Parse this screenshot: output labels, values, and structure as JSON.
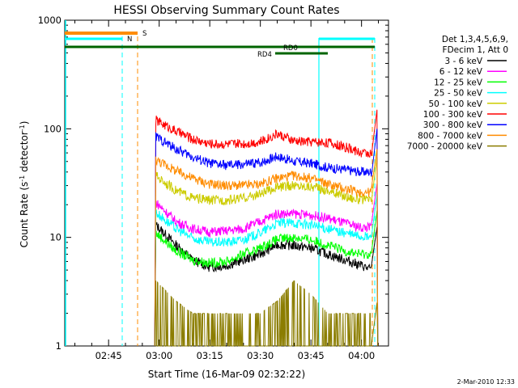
{
  "chart_data": {
    "type": "line",
    "title": "HESSI Observing Summary Count Rates",
    "xlabel": "Start Time (16-Mar-09 02:32:22)",
    "ylabel_main": "Count Rate (s",
    "ylabel_sup1": "-1",
    "ylabel_mid": " detector",
    "ylabel_sup2": "-1",
    "ylabel_end": ")",
    "y_scale": "log",
    "ylim": [
      1,
      1000
    ],
    "xlim": [
      "02:32",
      "04:08"
    ],
    "x_ticks": [
      "02:45",
      "03:00",
      "03:15",
      "03:30",
      "03:45",
      "04:00"
    ],
    "y_ticks": [
      "1",
      "10",
      "100",
      "1000"
    ],
    "footer_date": "2-Mar-2010 12:33",
    "legend": {
      "header1": "Det 1,3,4,5,6,9,",
      "header2": "FDecim 1, Att 0",
      "placement": "right"
    },
    "series": [
      {
        "name": "3 - 6 keV",
        "color": "#000000",
        "x": [
          "02:59",
          "03:05",
          "03:10",
          "03:15",
          "03:20",
          "03:25",
          "03:30",
          "03:35",
          "03:40",
          "03:45",
          "03:50",
          "03:55",
          "04:00",
          "04:03"
        ],
        "values": [
          13,
          8.5,
          6.2,
          5.3,
          5.5,
          6.2,
          7.0,
          8.6,
          8.4,
          8.0,
          7.0,
          6.2,
          5.5,
          5
        ]
      },
      {
        "name": "6 - 12 keV",
        "color": "#ff00ff",
        "x": [
          "02:59",
          "03:05",
          "03:10",
          "03:15",
          "03:20",
          "03:25",
          "03:30",
          "03:35",
          "03:40",
          "03:45",
          "03:50",
          "03:55",
          "04:00",
          "04:03"
        ],
        "values": [
          21,
          14,
          12,
          11.2,
          11.5,
          12,
          14,
          16.5,
          16.5,
          16,
          15,
          13.5,
          12.3,
          12.5
        ]
      },
      {
        "name": "12 - 25 keV",
        "color": "#00ff00",
        "x": [
          "02:59",
          "03:05",
          "03:10",
          "03:15",
          "03:20",
          "03:25",
          "03:30",
          "03:35",
          "03:40",
          "03:45",
          "03:50",
          "03:55",
          "04:00",
          "04:03"
        ],
        "values": [
          11,
          7.5,
          6.2,
          5.8,
          6.0,
          7.0,
          8.0,
          9.6,
          10,
          9.5,
          8.5,
          7.5,
          7,
          7
        ]
      },
      {
        "name": "25 - 50 keV",
        "color": "#00ffff",
        "x": [
          "02:59",
          "03:05",
          "03:10",
          "03:15",
          "03:20",
          "03:25",
          "03:30",
          "03:35",
          "03:40",
          "03:45",
          "03:50",
          "03:55",
          "04:00",
          "04:03"
        ],
        "values": [
          17,
          12,
          9.8,
          9.0,
          9.0,
          9.5,
          11,
          13.5,
          13.6,
          13,
          12,
          11,
          10.2,
          10
        ]
      },
      {
        "name": "50 - 100 keV",
        "color": "#cccc00",
        "x": [
          "02:59",
          "03:05",
          "03:10",
          "03:15",
          "03:20",
          "03:25",
          "03:30",
          "03:35",
          "03:40",
          "03:45",
          "03:50",
          "03:55",
          "04:00",
          "04:03"
        ],
        "values": [
          37,
          27,
          23,
          22,
          22,
          23,
          25,
          29,
          30,
          29.5,
          27,
          24,
          22,
          22
        ]
      },
      {
        "name": "100 - 300 keV",
        "color": "#ff0000",
        "x": [
          "02:59",
          "03:05",
          "03:10",
          "03:15",
          "03:20",
          "03:25",
          "03:30",
          "03:35",
          "03:40",
          "03:45",
          "03:50",
          "03:55",
          "04:00",
          "04:03"
        ],
        "values": [
          120,
          95,
          80,
          73,
          72,
          73,
          76,
          90,
          77,
          76,
          75,
          68,
          60,
          60
        ]
      },
      {
        "name": "300 - 800 keV",
        "color": "#0000ff",
        "x": [
          "02:59",
          "03:05",
          "03:10",
          "03:15",
          "03:20",
          "03:25",
          "03:30",
          "03:35",
          "03:40",
          "03:45",
          "03:50",
          "03:55",
          "04:00",
          "04:03"
        ],
        "values": [
          85,
          65,
          55,
          48,
          46,
          47,
          49,
          56,
          50,
          48,
          44,
          42,
          40,
          40
        ]
      },
      {
        "name": "800 - 7000 keV",
        "color": "#ff8c00",
        "x": [
          "02:59",
          "03:05",
          "03:10",
          "03:15",
          "03:20",
          "03:25",
          "03:30",
          "03:35",
          "03:40",
          "03:45",
          "03:50",
          "03:55",
          "04:00",
          "04:03"
        ],
        "values": [
          52,
          41,
          35,
          31,
          30,
          30,
          31,
          35,
          37,
          35,
          31,
          28,
          26,
          26
        ]
      },
      {
        "name": "7000 - 20000 keV",
        "color": "#8b7d00",
        "x": [
          "02:59",
          "03:05",
          "03:10",
          "03:15",
          "03:20",
          "03:25",
          "03:30",
          "03:35",
          "03:40",
          "03:45",
          "03:50",
          "03:55",
          "04:00",
          "04:03"
        ],
        "values": [
          2,
          1.3,
          1.0,
          1.0,
          1.0,
          1.0,
          1.0,
          1.3,
          2,
          1.5,
          1.0,
          1.0,
          1.0,
          1.0
        ]
      }
    ],
    "flags": {
      "S_label": "S",
      "N_label": "N",
      "RD0_label": "RD0",
      "RD4_label": "RD4"
    }
  }
}
